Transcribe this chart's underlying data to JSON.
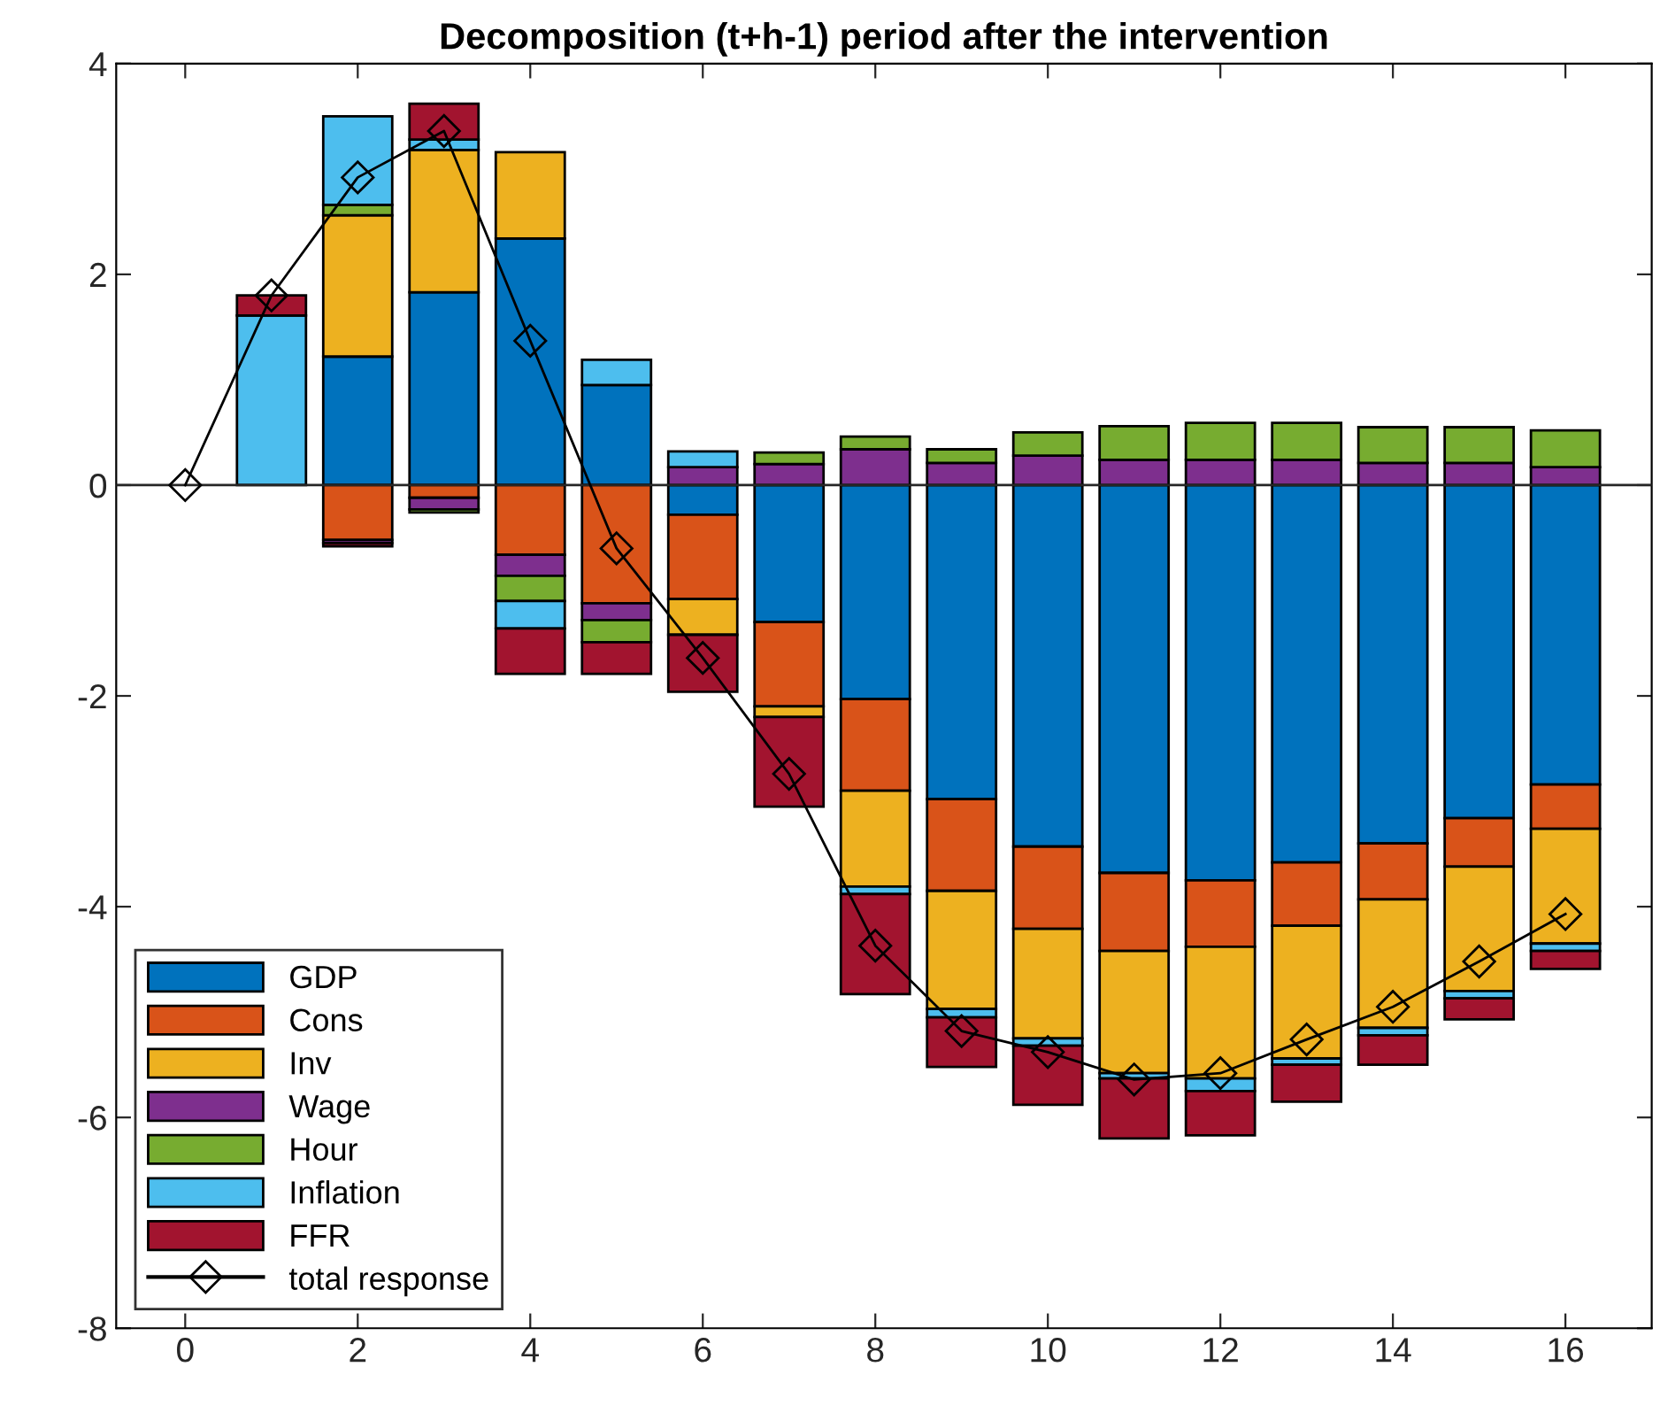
{
  "chart_data": {
    "type": "bar",
    "title": "Decomposition (t+h-1) period after the intervention",
    "x": [
      0,
      1,
      2,
      3,
      4,
      5,
      6,
      7,
      8,
      9,
      10,
      11,
      12,
      13,
      14,
      15,
      16
    ],
    "stacked": true,
    "series": [
      {
        "name": "GDP",
        "color": "#0072bd",
        "values": [
          null,
          null,
          1.22,
          1.83,
          2.34,
          0.95,
          -0.28,
          -1.3,
          -2.03,
          -2.98,
          -3.43,
          -3.68,
          -3.75,
          -3.58,
          -3.4,
          -3.16,
          -2.84
        ]
      },
      {
        "name": "Cons",
        "color": "#d95319",
        "values": [
          null,
          null,
          -0.52,
          -0.12,
          -0.66,
          -1.12,
          -0.8,
          -0.8,
          -0.87,
          -0.87,
          -0.78,
          -0.74,
          -0.63,
          -0.6,
          -0.53,
          -0.46,
          -0.42
        ]
      },
      {
        "name": "Inv",
        "color": "#edb120",
        "values": [
          null,
          null,
          1.34,
          1.35,
          0.82,
          null,
          -0.34,
          -0.1,
          -0.91,
          -1.12,
          -1.04,
          -1.16,
          -1.25,
          -1.26,
          -1.22,
          -1.18,
          -1.09
        ]
      },
      {
        "name": "Wage",
        "color": "#7e2f8e",
        "values": [
          null,
          null,
          -0.03,
          -0.11,
          -0.2,
          -0.16,
          0.17,
          0.2,
          0.34,
          0.21,
          0.28,
          0.24,
          0.24,
          0.24,
          0.21,
          0.21,
          0.17
        ]
      },
      {
        "name": "Hour",
        "color": "#77ac30",
        "values": [
          null,
          null,
          0.1,
          -0.03,
          -0.24,
          -0.21,
          null,
          0.11,
          0.12,
          0.13,
          0.22,
          0.32,
          0.35,
          0.35,
          0.34,
          0.34,
          0.35
        ]
      },
      {
        "name": "Inflation",
        "color": "#4dbeee",
        "values": [
          null,
          1.61,
          0.84,
          0.1,
          -0.26,
          0.24,
          0.15,
          null,
          -0.07,
          -0.08,
          -0.07,
          -0.05,
          -0.12,
          -0.06,
          -0.07,
          -0.07,
          -0.07
        ]
      },
      {
        "name": "FFR",
        "color": "#a2142f",
        "values": [
          null,
          0.19,
          -0.03,
          0.34,
          -0.43,
          -0.3,
          -0.54,
          -0.85,
          -0.95,
          -0.47,
          -0.56,
          -0.57,
          -0.42,
          -0.35,
          -0.28,
          -0.2,
          -0.17
        ]
      },
      {
        "name": "total response",
        "type": "line",
        "color": "#000000",
        "marker": "diamond",
        "values": [
          0,
          1.8,
          2.92,
          3.36,
          1.37,
          -0.6,
          -1.64,
          -2.74,
          -4.37,
          -5.18,
          -5.38,
          -5.64,
          -5.58,
          -5.26,
          -4.95,
          -4.52,
          -4.07
        ]
      }
    ],
    "xlim": [
      -0.8,
      17
    ],
    "xticks": [
      0,
      2,
      4,
      6,
      8,
      10,
      12,
      14,
      16
    ],
    "ylim": [
      -8,
      4
    ],
    "yticks": [
      -8,
      -6,
      -4,
      -2,
      0,
      2,
      4
    ],
    "ref_lines": [
      {
        "axis": "y",
        "value": 0,
        "color": "#262626"
      }
    ],
    "legend": "bottom left",
    "grid": false
  }
}
